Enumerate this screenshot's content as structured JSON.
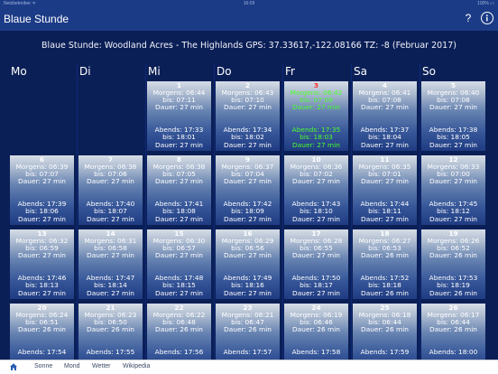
{
  "status": {
    "carrier": "Netzbetreiber ᯤ",
    "time": "16:09",
    "battery": "100% ▭"
  },
  "nav": {
    "title": "Blaue Stunde",
    "help": "?"
  },
  "header": "Blaue Stunde: Woodland Acres - The Highlands GPS: 37.33617,-122.08166 TZ: -8 (Februar 2017)",
  "weekdays": [
    "Mo",
    "Di",
    "Mi",
    "Do",
    "Fr",
    "Sa",
    "So"
  ],
  "days": [
    {
      "day": "1",
      "morning": "Morgens: 06:44",
      "until1": "bis: 07:11",
      "dur1": "Dauer: 27 min",
      "evening": "Abends: 17:33",
      "until2": "bis: 18:01",
      "dur2": "Dauer: 27 min"
    },
    {
      "day": "2",
      "morning": "Morgens: 06:43",
      "until1": "bis: 07:10",
      "dur1": "Dauer: 27 min",
      "evening": "Abends: 17:34",
      "until2": "bis: 18:02",
      "dur2": "Dauer: 27 min"
    },
    {
      "day": "3",
      "morning": "Morgens: 06:42",
      "until1": "bis: 07:09",
      "dur1": "Dauer: 27 min",
      "evening": "Abends: 17:35",
      "until2": "bis: 18:03",
      "dur2": "Dauer: 27 min",
      "today": true
    },
    {
      "day": "4",
      "morning": "Morgens: 06:41",
      "until1": "bis: 07:08",
      "dur1": "Dauer: 27 min",
      "evening": "Abends: 17:37",
      "until2": "bis: 18:04",
      "dur2": "Dauer: 27 min"
    },
    {
      "day": "5",
      "morning": "Morgens: 06:40",
      "until1": "bis: 07:08",
      "dur1": "Dauer: 27 min",
      "evening": "Abends: 17:38",
      "until2": "bis: 18:05",
      "dur2": "Dauer: 27 min"
    },
    {
      "day": "6",
      "morning": "Morgens: 06:39",
      "until1": "bis: 07:07",
      "dur1": "Dauer: 27 min",
      "evening": "Abends: 17:39",
      "until2": "bis: 18:06",
      "dur2": "Dauer: 27 min"
    },
    {
      "day": "7",
      "morning": "Morgens: 06:38",
      "until1": "bis: 07:06",
      "dur1": "Dauer: 27 min",
      "evening": "Abends: 17:40",
      "until2": "bis: 18:07",
      "dur2": "Dauer: 27 min"
    },
    {
      "day": "8",
      "morning": "Morgens: 06:38",
      "until1": "bis: 07:05",
      "dur1": "Dauer: 27 min",
      "evening": "Abends: 17:41",
      "until2": "bis: 18:08",
      "dur2": "Dauer: 27 min"
    },
    {
      "day": "9",
      "morning": "Morgens: 06:37",
      "until1": "bis: 07:04",
      "dur1": "Dauer: 27 min",
      "evening": "Abends: 17:42",
      "until2": "bis: 18:09",
      "dur2": "Dauer: 27 min"
    },
    {
      "day": "10",
      "morning": "Morgens: 06:36",
      "until1": "bis: 07:02",
      "dur1": "Dauer: 27 min",
      "evening": "Abends: 17:43",
      "until2": "bis: 18:10",
      "dur2": "Dauer: 27 min"
    },
    {
      "day": "11",
      "morning": "Morgens: 06:35",
      "until1": "bis: 07:01",
      "dur1": "Dauer: 27 min",
      "evening": "Abends: 17:44",
      "until2": "bis: 18:11",
      "dur2": "Dauer: 27 min"
    },
    {
      "day": "12",
      "morning": "Morgens: 06:33",
      "until1": "bis: 07:00",
      "dur1": "Dauer: 27 min",
      "evening": "Abends: 17:45",
      "until2": "bis: 18:12",
      "dur2": "Dauer: 27 min"
    },
    {
      "day": "13",
      "morning": "Morgens: 06:32",
      "until1": "bis: 06:59",
      "dur1": "Dauer: 27 min",
      "evening": "Abends: 17:46",
      "until2": "bis: 18:13",
      "dur2": "Dauer: 27 min"
    },
    {
      "day": "14",
      "morning": "Morgens: 06:31",
      "until1": "bis: 06:58",
      "dur1": "Dauer: 27 min",
      "evening": "Abends: 17:47",
      "until2": "bis: 18:14",
      "dur2": "Dauer: 27 min"
    },
    {
      "day": "15",
      "morning": "Morgens: 06:30",
      "until1": "bis: 06:57",
      "dur1": "Dauer: 27 min",
      "evening": "Abends: 17:48",
      "until2": "bis: 18:15",
      "dur2": "Dauer: 27 min"
    },
    {
      "day": "16",
      "morning": "Morgens: 06:29",
      "until1": "bis: 06:56",
      "dur1": "Dauer: 27 min",
      "evening": "Abends: 17:49",
      "until2": "bis: 18:16",
      "dur2": "Dauer: 27 min"
    },
    {
      "day": "17",
      "morning": "Morgens: 06:28",
      "until1": "bis: 06:55",
      "dur1": "Dauer: 27 min",
      "evening": "Abends: 17:50",
      "until2": "bis: 18:17",
      "dur2": "Dauer: 27 min"
    },
    {
      "day": "18",
      "morning": "Morgens: 06:27",
      "until1": "bis: 06:53",
      "dur1": "Dauer: 26 min",
      "evening": "Abends: 17:52",
      "until2": "bis: 18:18",
      "dur2": "Dauer: 26 min"
    },
    {
      "day": "19",
      "morning": "Morgens: 06:26",
      "until1": "bis: 06:52",
      "dur1": "Dauer: 26 min",
      "evening": "Abends: 17:53",
      "until2": "bis: 18:19",
      "dur2": "Dauer: 26 min"
    },
    {
      "day": "20",
      "morning": "Morgens: 06:24",
      "until1": "bis: 06:51",
      "dur1": "Dauer: 26 min",
      "evening": "Abends: 17:54",
      "until2": "",
      "dur2": ""
    },
    {
      "day": "21",
      "morning": "Morgens: 06:23",
      "until1": "bis: 06:50",
      "dur1": "Dauer: 26 min",
      "evening": "Abends: 17:55",
      "until2": "",
      "dur2": ""
    },
    {
      "day": "22",
      "morning": "Morgens: 06:22",
      "until1": "bis: 06:48",
      "dur1": "Dauer: 26 min",
      "evening": "Abends: 17:56",
      "until2": "",
      "dur2": ""
    },
    {
      "day": "23",
      "morning": "Morgens: 06:21",
      "until1": "bis: 06:47",
      "dur1": "Dauer: 26 min",
      "evening": "Abends: 17:57",
      "until2": "",
      "dur2": ""
    },
    {
      "day": "24",
      "morning": "Morgens: 06:19",
      "until1": "bis: 06:46",
      "dur1": "Dauer: 26 min",
      "evening": "Abends: 17:58",
      "until2": "",
      "dur2": ""
    },
    {
      "day": "25",
      "morning": "Morgens: 06:18",
      "until1": "bis: 06:44",
      "dur1": "Dauer: 26 min",
      "evening": "Abends: 17:59",
      "until2": "",
      "dur2": ""
    },
    {
      "day": "26",
      "morning": "Morgens: 06:17",
      "until1": "bis: 06:44",
      "dur1": "Dauer: 26 min",
      "evening": "Abends: 18:00",
      "until2": "",
      "dur2": ""
    }
  ],
  "tabs": [
    "Sonne",
    "Mond",
    "Wetter",
    "Wikipedia"
  ],
  "colors": {
    "today_day": "#ff2a2a",
    "today_text": "#4cff2a",
    "background": "#0b1f57",
    "bar": "#1c3b86"
  }
}
